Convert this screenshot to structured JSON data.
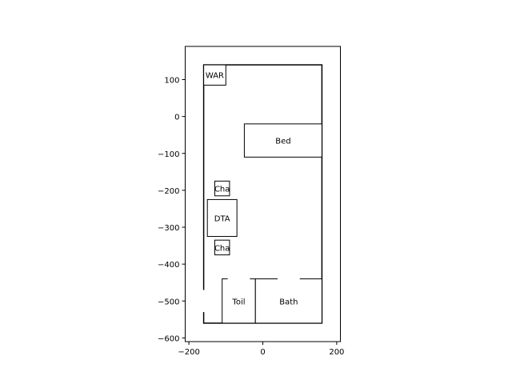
{
  "chart_data": {
    "type": "floor_plan",
    "xlim": [
      -210,
      210
    ],
    "ylim": [
      -610,
      190
    ],
    "x_ticks": [
      {
        "value": -200,
        "label": "−200"
      },
      {
        "value": 0,
        "label": "0"
      },
      {
        "value": 200,
        "label": "200"
      }
    ],
    "y_ticks": [
      {
        "value": 100,
        "label": "100"
      },
      {
        "value": 0,
        "label": "0"
      },
      {
        "value": -100,
        "label": "−100"
      },
      {
        "value": -200,
        "label": "−200"
      },
      {
        "value": -300,
        "label": "−300"
      },
      {
        "value": -400,
        "label": "−400"
      },
      {
        "value": -500,
        "label": "−500"
      },
      {
        "value": -600,
        "label": "−600"
      }
    ],
    "room": {
      "x0": -160,
      "y0": -560,
      "x1": 160,
      "y1": 140
    },
    "door_gap": {
      "x": -160,
      "y0": -530,
      "y1": -470
    },
    "furniture": [
      {
        "id": "wardrobe",
        "label": "WAR",
        "x0": -160,
        "y0": 85,
        "x1": -100,
        "y1": 140
      },
      {
        "id": "bed",
        "label": "Bed",
        "x0": -50,
        "y0": -110,
        "x1": 160,
        "y1": -20
      },
      {
        "id": "chair-top",
        "label": "Cha",
        "x0": -130,
        "y0": -215,
        "x1": -90,
        "y1": -175
      },
      {
        "id": "dining-table",
        "label": "DTA",
        "x0": -150,
        "y0": -325,
        "x1": -70,
        "y1": -225
      },
      {
        "id": "chair-bottom",
        "label": "Cha",
        "x0": -130,
        "y0": -375,
        "x1": -90,
        "y1": -335
      },
      {
        "id": "toilet",
        "label": "Toil",
        "x0": -110,
        "y0": -560,
        "x1": -20,
        "y1": -440
      },
      {
        "id": "bath",
        "label": "Bath",
        "x0": -20,
        "y0": -560,
        "x1": 160,
        "y1": -440
      }
    ],
    "wall_openings": [
      {
        "x0": -95,
        "x1": -35,
        "y": -440
      },
      {
        "x0": 40,
        "x1": 100,
        "y": -440
      }
    ]
  }
}
